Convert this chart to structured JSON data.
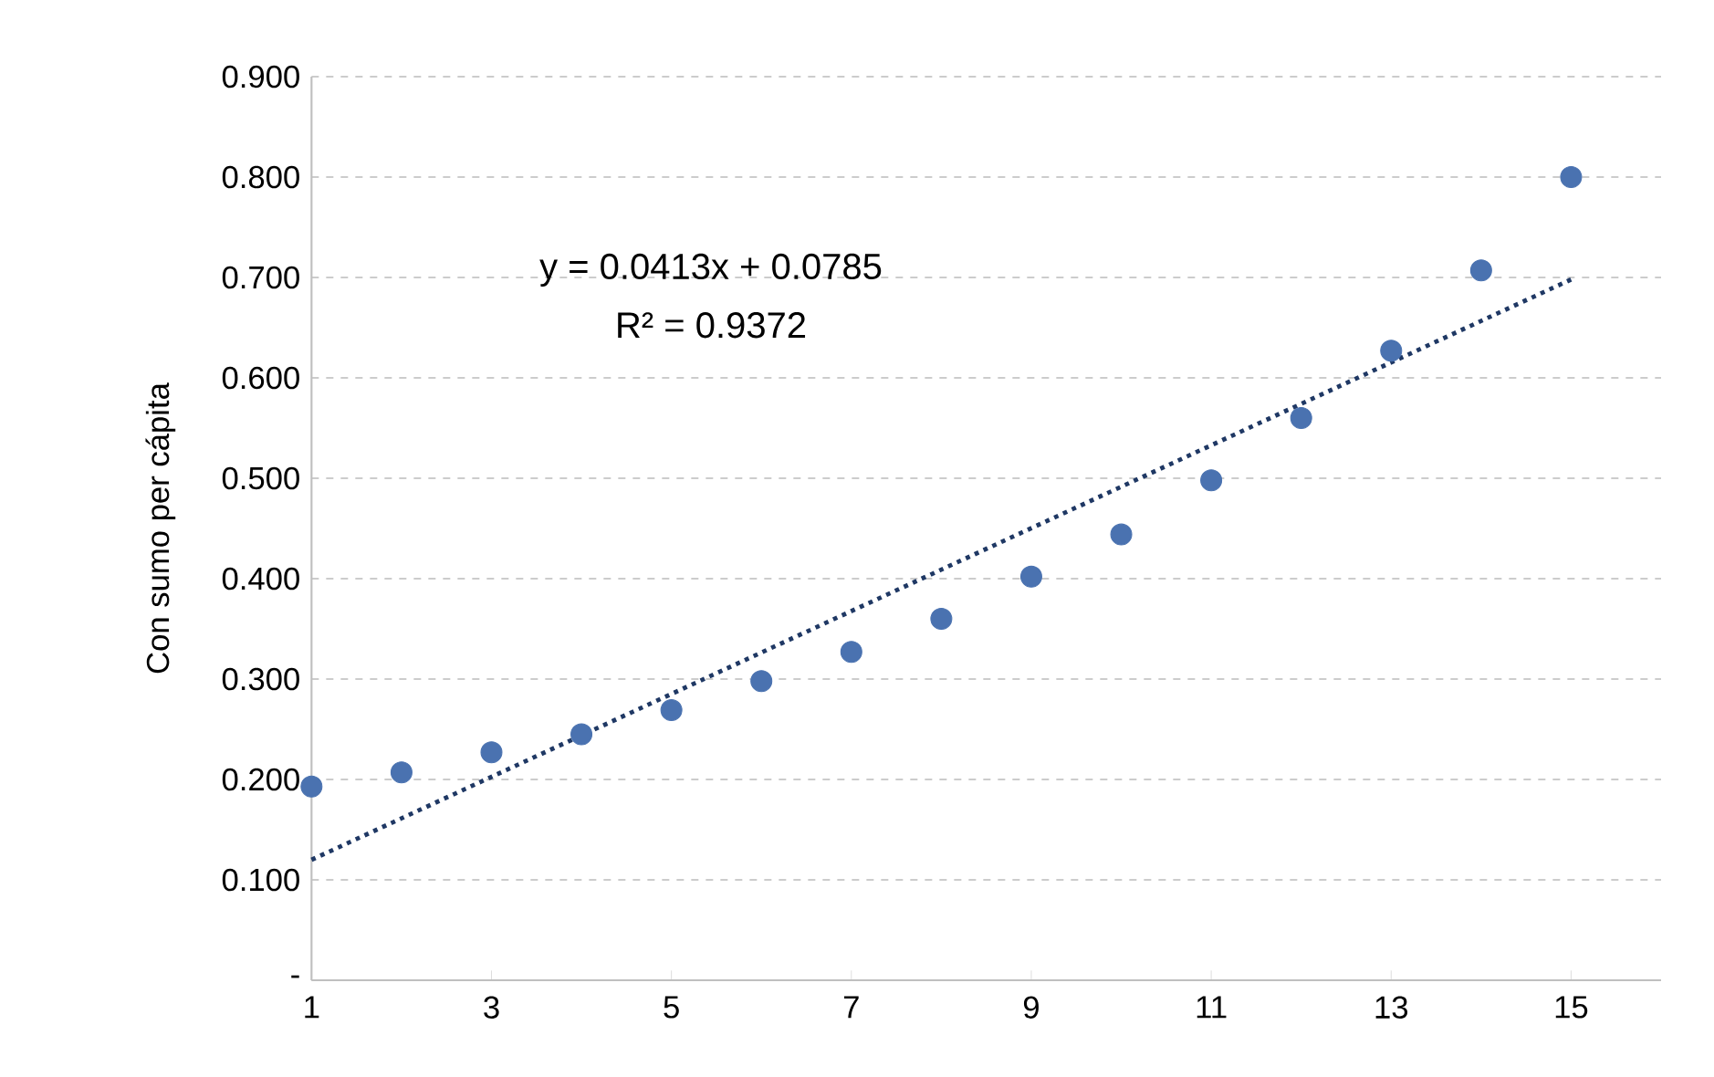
{
  "chart_data": {
    "type": "scatter",
    "ylabel": "Con sumo per cápita",
    "annotations": [
      "y = 0.0413x + 0.0785",
      "R² = 0.9372"
    ],
    "x": [
      1,
      2,
      3,
      4,
      5,
      6,
      7,
      8,
      9,
      10,
      11,
      12,
      13,
      14,
      15
    ],
    "series": [
      {
        "color": "#4a72b0",
        "marker": "circle",
        "values": [
          0.193,
          0.207,
          0.227,
          0.245,
          0.269,
          0.298,
          0.327,
          0.36,
          0.402,
          0.444,
          0.498,
          0.56,
          0.627,
          0.707,
          0.8
        ]
      },
      {
        "type": "line",
        "x": [
          1,
          15
        ],
        "color": "#1f3864",
        "line_style": "dotted",
        "marker": "none",
        "values": [
          0.12,
          0.698
        ]
      }
    ],
    "xlim": [
      1,
      16
    ],
    "xticks": [
      1,
      3,
      5,
      7,
      9,
      11,
      13,
      15
    ],
    "ylim": [
      0,
      0.9
    ],
    "yticks": [
      {
        "value": 0,
        "label": "-"
      },
      {
        "value": 0.1,
        "label": "0.100"
      },
      {
        "value": 0.2,
        "label": "0.200"
      },
      {
        "value": 0.3,
        "label": "0.300"
      },
      {
        "value": 0.4,
        "label": "0.400"
      },
      {
        "value": 0.5,
        "label": "0.500"
      },
      {
        "value": 0.6,
        "label": "0.600"
      },
      {
        "value": 0.7,
        "label": "0.700"
      },
      {
        "value": 0.8,
        "label": "0.800"
      },
      {
        "value": 0.9,
        "label": "0.900"
      }
    ],
    "grid": "y"
  }
}
